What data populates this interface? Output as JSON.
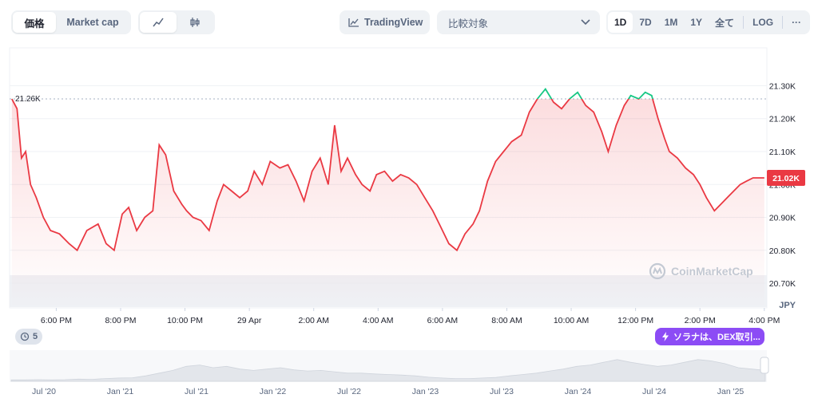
{
  "toolbar": {
    "mode_tabs": [
      {
        "label": "価格",
        "active": true
      },
      {
        "label": "Market cap",
        "active": false
      }
    ],
    "chart_type_icons": [
      "line-chart-icon",
      "candlestick-icon"
    ],
    "tradingview_label": "TradingView",
    "compare_placeholder": "比較対象",
    "ranges": [
      "1D",
      "7D",
      "1M",
      "1Y",
      "全て"
    ],
    "active_range": "1D",
    "log_label": "LOG",
    "more_label": "···"
  },
  "badge": {
    "count": "5"
  },
  "news": {
    "label": "ソラナは、DEX取引..."
  },
  "watermark": {
    "label": "CoinMarketCap"
  },
  "colors": {
    "up": "#16c784",
    "down": "#ea3943",
    "accent": "#8c4cf5"
  },
  "chart_data": {
    "type": "line",
    "currency": "JPY",
    "reference_label": "21.26K",
    "reference_value": 21260,
    "current_label": "21.02K",
    "current_value": 21020,
    "ylim": [
      20625,
      21415
    ],
    "yticks": [
      20700,
      20800,
      20900,
      21000,
      21100,
      21200,
      21300
    ],
    "ytick_labels": [
      "20.70K",
      "20.80K",
      "20.90K",
      "21.00K",
      "21.10K",
      "21.20K",
      "21.30K"
    ],
    "xlim": [
      16.55,
      40.08
    ],
    "xticks": [
      18,
      20,
      22,
      24,
      26,
      28,
      30,
      32,
      34,
      36,
      38,
      40
    ],
    "xtick_labels": [
      "6:00 PM",
      "8:00 PM",
      "10:00 PM",
      "29 Apr",
      "2:00 AM",
      "4:00 AM",
      "6:00 AM",
      "8:00 AM",
      "10:00 AM",
      "12:00 PM",
      "2:00 PM",
      "4:00 PM"
    ],
    "series": [
      {
        "x": [
          16.62,
          16.78,
          16.92,
          17.05,
          17.2,
          17.38,
          17.6,
          17.82,
          18.1,
          18.4,
          18.65,
          18.95,
          19.3,
          19.55,
          19.8,
          20.05,
          20.25,
          20.5,
          20.75,
          21.0,
          21.2,
          21.4,
          21.65,
          21.9,
          22.05,
          22.25,
          22.5,
          22.75,
          23.0,
          23.2,
          23.45,
          23.7,
          23.95,
          24.15,
          24.4,
          24.65,
          24.95,
          25.2,
          25.45,
          25.7,
          25.95,
          26.2,
          26.45,
          26.65,
          26.85,
          27.05,
          27.3,
          27.5,
          27.75,
          27.95,
          28.2,
          28.45,
          28.7,
          28.95,
          29.2,
          29.45,
          29.7,
          29.95,
          30.2,
          30.45,
          30.7,
          30.95,
          31.15,
          31.4,
          31.65,
          31.9,
          32.15,
          32.45,
          32.7,
          32.95,
          33.2,
          33.45,
          33.7,
          33.95,
          34.2,
          34.45,
          34.7,
          34.95,
          35.15,
          35.4,
          35.65,
          35.85,
          36.1,
          36.3,
          36.5,
          36.7,
          36.9,
          37.05,
          37.3,
          37.55,
          37.8,
          38.0,
          38.2,
          38.45,
          38.65,
          38.85,
          39.05,
          39.25,
          39.45,
          39.65,
          39.85,
          40.0
        ],
        "y": [
          21260,
          21230,
          21080,
          21100,
          21000,
          20960,
          20900,
          20860,
          20850,
          20820,
          20800,
          20860,
          20880,
          20820,
          20800,
          20910,
          20930,
          20860,
          20900,
          20920,
          21120,
          21090,
          20980,
          20940,
          20920,
          20900,
          20890,
          20860,
          20950,
          21000,
          20980,
          20960,
          20980,
          21040,
          21000,
          21070,
          21050,
          21060,
          21010,
          20950,
          21040,
          21080,
          21000,
          21180,
          21040,
          21080,
          21030,
          21000,
          20980,
          21030,
          21040,
          21010,
          21030,
          21020,
          21000,
          20960,
          20920,
          20870,
          20820,
          20800,
          20850,
          20880,
          20920,
          21010,
          21070,
          21100,
          21130,
          21150,
          21220,
          21260,
          21290,
          21250,
          21230,
          21260,
          21280,
          21240,
          21220,
          21160,
          21100,
          21180,
          21240,
          21270,
          21260,
          21280,
          21270,
          21200,
          21140,
          21100,
          21080,
          21050,
          21030,
          21000,
          20960,
          20920,
          20940,
          20960,
          20980,
          21000,
          21010,
          21020,
          21020,
          21020
        ],
        "volume_line": true
      }
    ],
    "mini_navigator": {
      "xtick_labels": [
        "Jul '20",
        "Jan '21",
        "Jul '21",
        "Jan '22",
        "Jul '22",
        "Jan '23",
        "Jul '23",
        "Jan '24",
        "Jul '24",
        "Jan '25"
      ],
      "values": [
        0.05,
        0.05,
        0.06,
        0.05,
        0.06,
        0.08,
        0.07,
        0.1,
        0.12,
        0.13,
        0.2,
        0.3,
        0.4,
        0.55,
        0.6,
        0.5,
        0.55,
        0.45,
        0.4,
        0.45,
        0.5,
        0.42,
        0.38,
        0.4,
        0.35,
        0.3,
        0.3,
        0.27,
        0.25,
        0.23,
        0.2,
        0.15,
        0.12,
        0.1,
        0.1,
        0.12,
        0.14,
        0.2,
        0.25,
        0.3,
        0.38,
        0.45,
        0.55,
        0.6,
        0.7,
        0.8,
        0.7,
        0.62,
        0.55,
        0.6,
        0.7,
        0.8,
        0.75,
        0.65,
        0.5,
        0.45,
        0.4
      ]
    }
  }
}
